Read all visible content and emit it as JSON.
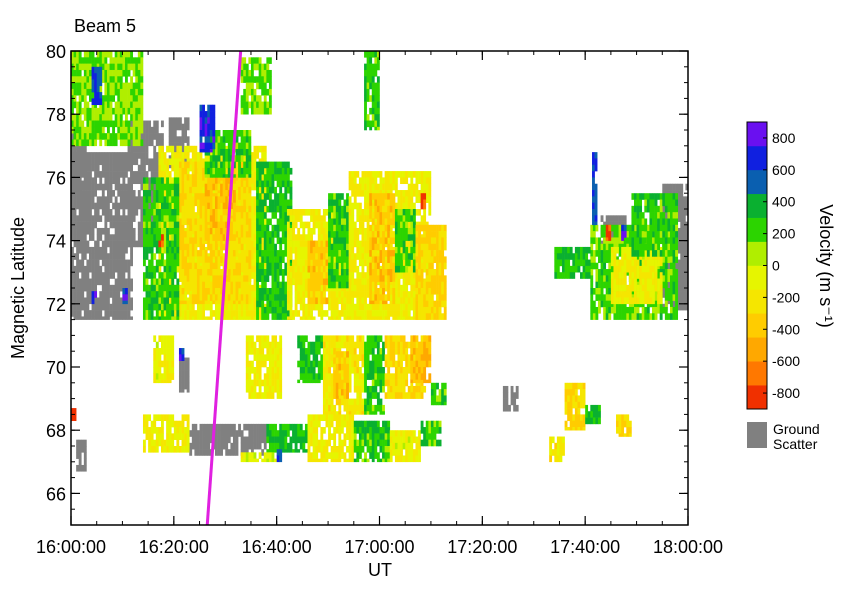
{
  "chart_data": {
    "type": "heatmap",
    "title": "Beam 5",
    "xlabel": "UT",
    "ylabel": "Magnetic Latitude",
    "xlim": [
      "16:00:00",
      "18:00:00"
    ],
    "ylim": [
      65,
      80
    ],
    "x_ticks": [
      "16:00:00",
      "16:20:00",
      "16:40:00",
      "17:00:00",
      "17:20:00",
      "17:40:00",
      "18:00:00"
    ],
    "y_ticks": [
      "66",
      "68",
      "70",
      "72",
      "74",
      "76",
      "78",
      "80"
    ],
    "colorbar": {
      "label": "Velocity (m s⁻¹)",
      "ticks": [
        "800",
        "600",
        "400",
        "200",
        "0",
        "-200",
        "-400",
        "-600",
        "-800"
      ],
      "colors": [
        "#f03000",
        "#ff7800",
        "#ffa800",
        "#ffcc00",
        "#f5e600",
        "#e6f500",
        "#b0ee00",
        "#2cd400",
        "#0ab030",
        "#0a5fb0",
        "#1020e0",
        "#6a10f0"
      ],
      "ground_scatter_label": [
        "Ground",
        "Scatter"
      ],
      "ground_scatter_color": "#808080"
    },
    "overlay_line": {
      "color": "#e020e0",
      "points": [
        [
          "16:26:30",
          65
        ],
        [
          "16:33:00",
          80
        ]
      ]
    },
    "regions": [
      {
        "type": "ground",
        "t0": "16:00:00",
        "t1": "16:03:00",
        "lat0": 75.5,
        "lat1": 77.5
      },
      {
        "type": "ground",
        "t0": "16:00:00",
        "t1": "16:12:00",
        "lat0": 71.5,
        "lat1": 76.8
      },
      {
        "type": "ground",
        "t0": "16:11:00",
        "t1": "16:18:00",
        "lat0": 73.8,
        "lat1": 77.8
      },
      {
        "type": "ground",
        "t0": "16:19:00",
        "t1": "16:23:00",
        "lat0": 76.3,
        "lat1": 77.9
      },
      {
        "type": "ground",
        "t0": "16:23:00",
        "t1": "16:38:00",
        "lat0": 67.2,
        "lat1": 68.2
      },
      {
        "type": "ground",
        "t0": "16:21:00",
        "t1": "16:23:00",
        "lat0": 69.2,
        "lat1": 70.3
      },
      {
        "type": "ground",
        "t0": "17:24:00",
        "t1": "17:27:00",
        "lat0": 68.6,
        "lat1": 69.4
      },
      {
        "type": "ground",
        "t0": "17:43:00",
        "t1": "17:48:00",
        "lat0": 73.6,
        "lat1": 74.8
      },
      {
        "type": "ground",
        "t0": "17:55:00",
        "t1": "18:00:00",
        "lat0": 71.8,
        "lat1": 75.8
      },
      {
        "type": "ground",
        "t0": "16:01:00",
        "t1": "16:03:00",
        "lat0": 66.7,
        "lat1": 67.7
      },
      {
        "type": "vel",
        "v": -150,
        "t0": "16:17:00",
        "t1": "16:38:00",
        "lat0": 71.5,
        "lat1": 77.0
      },
      {
        "type": "vel",
        "v": -280,
        "t0": "16:21:00",
        "t1": "16:35:00",
        "lat0": 72.0,
        "lat1": 76.5
      },
      {
        "type": "vel",
        "v": -380,
        "t0": "16:26:00",
        "t1": "16:32:00",
        "lat0": 74.0,
        "lat1": 76.0
      },
      {
        "type": "vel",
        "v": 250,
        "t0": "16:14:00",
        "t1": "16:21:00",
        "lat0": 71.5,
        "lat1": 76.0
      },
      {
        "type": "vel",
        "v": 300,
        "t0": "16:36:00",
        "t1": "16:43:00",
        "lat0": 71.5,
        "lat1": 76.5
      },
      {
        "type": "vel",
        "v": -150,
        "t0": "16:42:00",
        "t1": "16:55:00",
        "lat0": 71.5,
        "lat1": 75.0
      },
      {
        "type": "vel",
        "v": -380,
        "t0": "16:46:00",
        "t1": "16:50:00",
        "lat0": 72.0,
        "lat1": 74.0
      },
      {
        "type": "vel",
        "v": 250,
        "t0": "16:50:00",
        "t1": "16:54:00",
        "lat0": 72.5,
        "lat1": 75.5
      },
      {
        "type": "vel",
        "v": -150,
        "t0": "16:54:00",
        "t1": "17:10:00",
        "lat0": 71.5,
        "lat1": 76.2
      },
      {
        "type": "vel",
        "v": -380,
        "t0": "16:58:00",
        "t1": "17:03:00",
        "lat0": 72.0,
        "lat1": 75.5
      },
      {
        "type": "vel",
        "v": 250,
        "t0": "17:03:00",
        "t1": "17:07:00",
        "lat0": 73.0,
        "lat1": 75.0
      },
      {
        "type": "vel",
        "v": -300,
        "t0": "17:07:00",
        "t1": "17:13:00",
        "lat0": 71.5,
        "lat1": 74.5
      },
      {
        "type": "vel",
        "v": 250,
        "t0": "16:26:00",
        "t1": "16:35:00",
        "lat0": 76.0,
        "lat1": 77.5
      },
      {
        "type": "vel",
        "v": 150,
        "t0": "16:00:00",
        "t1": "16:14:00",
        "lat0": 77.0,
        "lat1": 80.0
      },
      {
        "type": "vel",
        "v": 600,
        "t0": "16:04:00",
        "t1": "16:06:00",
        "lat0": 78.3,
        "lat1": 79.5
      },
      {
        "type": "vel",
        "v": 700,
        "t0": "16:25:00",
        "t1": "16:28:00",
        "lat0": 76.8,
        "lat1": 78.3
      },
      {
        "type": "vel",
        "v": 150,
        "t0": "16:33:00",
        "t1": "16:39:00",
        "lat0": 78.0,
        "lat1": 79.8
      },
      {
        "type": "vel",
        "v": 250,
        "t0": "16:57:00",
        "t1": "17:00:00",
        "lat0": 77.5,
        "lat1": 80.0
      },
      {
        "type": "vel",
        "v": -150,
        "t0": "16:34:00",
        "t1": "16:41:00",
        "lat0": 69.0,
        "lat1": 71.0
      },
      {
        "type": "vel",
        "v": 300,
        "t0": "16:44:00",
        "t1": "16:49:00",
        "lat0": 69.5,
        "lat1": 71.0
      },
      {
        "type": "vel",
        "v": -200,
        "t0": "16:49:00",
        "t1": "16:57:00",
        "lat0": 68.5,
        "lat1": 71.0
      },
      {
        "type": "vel",
        "v": -380,
        "t0": "16:51:00",
        "t1": "16:54:00",
        "lat0": 69.0,
        "lat1": 70.5
      },
      {
        "type": "vel",
        "v": 250,
        "t0": "16:57:00",
        "t1": "17:01:00",
        "lat0": 68.5,
        "lat1": 71.0
      },
      {
        "type": "vel",
        "v": -300,
        "t0": "17:01:00",
        "t1": "17:09:00",
        "lat0": 69.0,
        "lat1": 71.0
      },
      {
        "type": "vel",
        "v": -450,
        "t0": "17:06:00",
        "t1": "17:10:00",
        "lat0": 69.5,
        "lat1": 71.0
      },
      {
        "type": "vel",
        "v": 250,
        "t0": "17:10:00",
        "t1": "17:13:00",
        "lat0": 68.8,
        "lat1": 69.5
      },
      {
        "type": "vel",
        "v": -100,
        "t0": "16:16:00",
        "t1": "16:20:00",
        "lat0": 69.5,
        "lat1": 71.0
      },
      {
        "type": "vel",
        "v": -150,
        "t0": "16:14:00",
        "t1": "16:23:00",
        "lat0": 67.3,
        "lat1": 68.5
      },
      {
        "type": "vel",
        "v": 300,
        "t0": "16:38:00",
        "t1": "16:46:00",
        "lat0": 67.3,
        "lat1": 68.2
      },
      {
        "type": "vel",
        "v": -150,
        "t0": "16:46:00",
        "t1": "16:55:00",
        "lat0": 67.0,
        "lat1": 68.5
      },
      {
        "type": "vel",
        "v": 250,
        "t0": "16:55:00",
        "t1": "17:02:00",
        "lat0": 67.0,
        "lat1": 68.3
      },
      {
        "type": "vel",
        "v": -100,
        "t0": "17:02:00",
        "t1": "17:08:00",
        "lat0": 67.0,
        "lat1": 68.0
      },
      {
        "type": "vel",
        "v": 250,
        "t0": "17:08:00",
        "t1": "17:12:00",
        "lat0": 67.5,
        "lat1": 68.3
      },
      {
        "type": "vel",
        "v": -50,
        "t0": "16:33:00",
        "t1": "16:40:00",
        "lat0": 67.0,
        "lat1": 67.3
      },
      {
        "type": "vel",
        "v": 200,
        "t0": "17:41:00",
        "t1": "17:58:00",
        "lat0": 71.5,
        "lat1": 74.5
      },
      {
        "type": "vel",
        "v": -150,
        "t0": "17:45:00",
        "t1": "17:55:00",
        "lat0": 72.0,
        "lat1": 73.8
      },
      {
        "type": "vel",
        "v": 250,
        "t0": "17:49:00",
        "t1": "17:58:00",
        "lat0": 73.5,
        "lat1": 75.5
      },
      {
        "type": "vel",
        "v": 300,
        "t0": "17:34:00",
        "t1": "17:41:00",
        "lat0": 72.8,
        "lat1": 73.8
      },
      {
        "type": "vel",
        "v": 600,
        "t0": "17:41:20",
        "t1": "17:42:20",
        "lat0": 74.5,
        "lat1": 76.8
      },
      {
        "type": "vel",
        "v": -300,
        "t0": "17:36:00",
        "t1": "17:40:00",
        "lat0": 68.0,
        "lat1": 69.5
      },
      {
        "type": "vel",
        "v": 300,
        "t0": "17:40:00",
        "t1": "17:43:00",
        "lat0": 68.2,
        "lat1": 68.8
      },
      {
        "type": "vel",
        "v": -300,
        "t0": "17:46:00",
        "t1": "17:49:00",
        "lat0": 67.8,
        "lat1": 68.5
      },
      {
        "type": "vel",
        "v": -200,
        "t0": "17:33:00",
        "t1": "17:36:00",
        "lat0": 67.0,
        "lat1": 67.8
      },
      {
        "type": "vel",
        "v": 700,
        "t0": "16:04:00",
        "t1": "16:05:00",
        "lat0": 72.0,
        "lat1": 72.4
      },
      {
        "type": "vel",
        "v": -800,
        "t0": "16:17:00",
        "t1": "16:18:00",
        "lat0": 73.8,
        "lat1": 74.2
      },
      {
        "type": "vel",
        "v": -800,
        "t0": "17:08:00",
        "t1": "17:09:00",
        "lat0": 75.0,
        "lat1": 75.5
      },
      {
        "type": "vel",
        "v": -800,
        "t0": "17:44:00",
        "t1": "17:45:00",
        "lat0": 74.0,
        "lat1": 74.5
      },
      {
        "type": "vel",
        "v": 700,
        "t0": "17:47:00",
        "t1": "17:48:00",
        "lat0": 74.0,
        "lat1": 74.5
      },
      {
        "type": "vel",
        "v": 700,
        "t0": "16:21:00",
        "t1": "16:22:00",
        "lat0": 70.2,
        "lat1": 70.6
      },
      {
        "type": "vel",
        "v": -800,
        "t0": "16:00:00",
        "t1": "16:01:00",
        "lat0": 68.3,
        "lat1": 68.7
      },
      {
        "type": "vel",
        "v": 700,
        "t0": "16:10:00",
        "t1": "16:11:00",
        "lat0": 72.0,
        "lat1": 72.5
      },
      {
        "type": "vel",
        "v": 600,
        "t0": "16:40:00",
        "t1": "16:41:00",
        "lat0": 67.0,
        "lat1": 67.4
      }
    ]
  }
}
